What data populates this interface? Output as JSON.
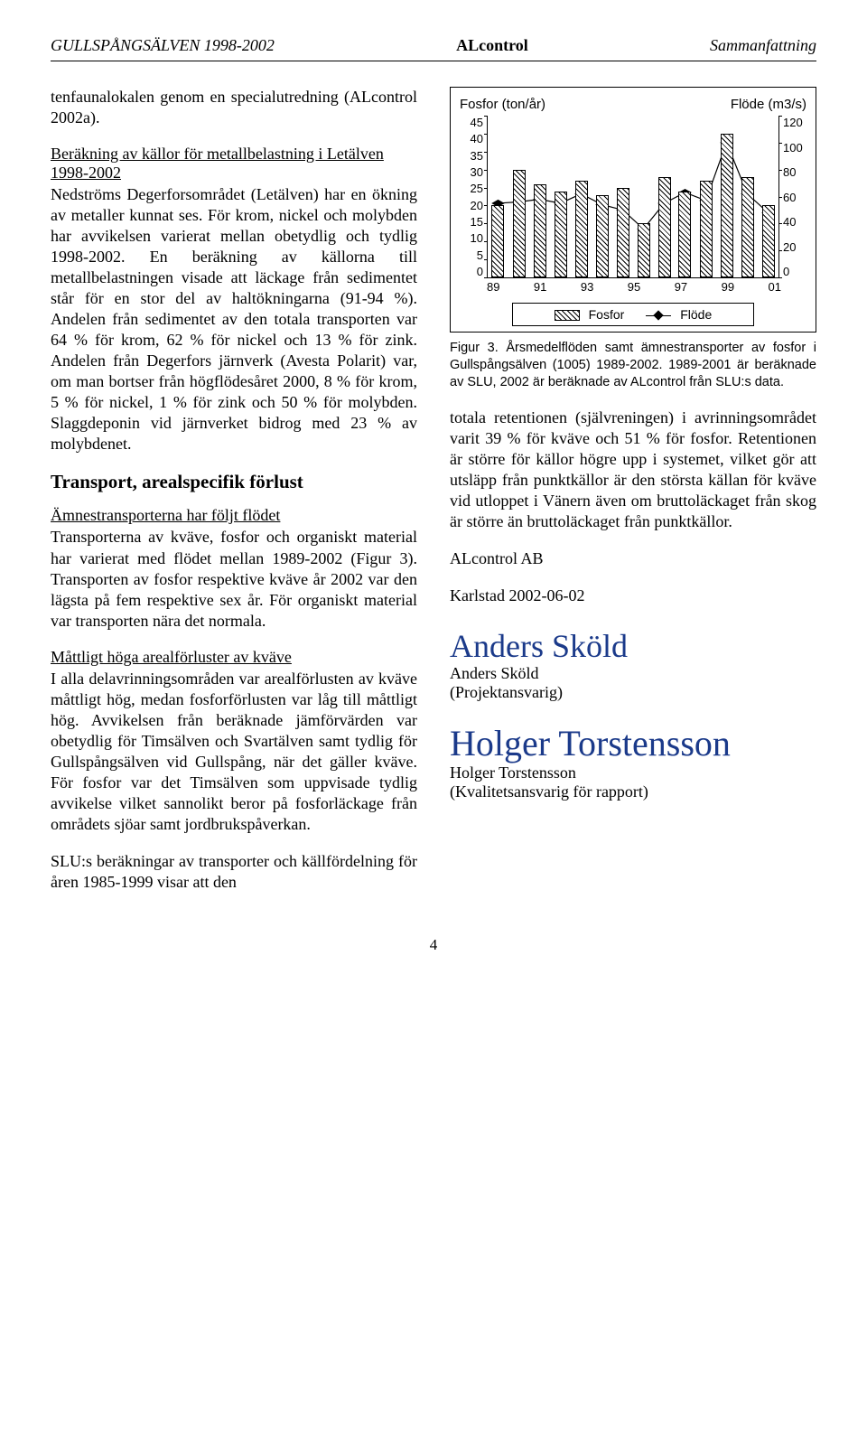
{
  "header": {
    "left": "GULLSPÅNGSÄLVEN 1998-2002",
    "center": "ALcontrol",
    "right": "Sammanfattning"
  },
  "left_col": {
    "p1": "tenfaunalokalen genom en specialutredning (ALcontrol 2002a).",
    "p2_lead": "Beräkning av källor för metallbelastning i Letälven 1998-2002",
    "p2": "Nedströms Degerforsområdet (Letälven) har en ökning av metaller kunnat ses. För krom, nickel och molybden har avvikelsen varierat mellan obetydlig och tydlig 1998-2002. En beräkning av källorna till metallbelastningen visade att läckage från sedimentet står för en stor del av haltökningarna (91-94 %). Andelen från sedimentet av den totala transporten var 64 % för krom, 62 % för nickel och 13 % för zink. Andelen från Degerfors järnverk (Avesta Polarit) var, om man bortser från högflödesåret 2000, 8 % för krom, 5 % för nickel, 1 % för zink och 50 % för molybden. Slaggdeponin vid järnverket bidrog med 23 % av molybdenet.",
    "h1": "Transport, arealspecifik förlust",
    "sub1": "Ämnestransporterna har följt flödet",
    "p3": "Transporterna av kväve, fosfor och organiskt material har varierat med flödet mellan 1989-2002 (Figur 3). Transporten av fosfor respektive kväve år 2002 var den lägsta på fem respektive sex år. För organiskt material var transporten nära det normala.",
    "sub2": "Måttligt höga arealförluster av kväve",
    "p4": "I alla delavrinningsområden var arealförlusten av kväve måttligt hög, medan fosforförlusten var låg till måttligt hög. Avvikelsen från beräknade jämförvärden var obetydlig för Timsälven och Svartälven samt tydlig för Gullspångsälven vid Gullspång, när det gäller kväve. För fosfor var det Timsälven som uppvisade tydlig avvikelse vilket sannolikt beror på fosforläckage från områdets sjöar samt jordbrukspåverkan.",
    "p5": "SLU:s beräkningar av transporter och källfördelning för åren 1985-1999 visar att den"
  },
  "chart": {
    "title_left": "Fosfor (ton/år)",
    "title_right": "Flöde (m3/s)",
    "y_left_ticks": [
      "45",
      "40",
      "35",
      "30",
      "25",
      "20",
      "15",
      "10",
      "5",
      "0"
    ],
    "y_right_ticks": [
      "120",
      "100",
      "80",
      "60",
      "40",
      "20",
      "0"
    ],
    "x_labels": [
      "89",
      "91",
      "93",
      "95",
      "97",
      "99",
      "01"
    ],
    "bars": [
      20,
      30,
      26,
      24,
      27,
      23,
      25,
      15,
      28,
      24,
      27,
      40,
      28,
      20
    ],
    "line": [
      55,
      56,
      58,
      55,
      62,
      54,
      50,
      36,
      55,
      63,
      57,
      100,
      62,
      48
    ],
    "y_left_max": 45,
    "y_right_max": 120,
    "legend_bar": "Fosfor",
    "legend_line": "Flöde"
  },
  "caption": "Figur 3. Årsmedelflöden samt ämnestransporter av fosfor i Gullspångsälven (1005) 1989-2002. 1989-2001 är beräknade av SLU, 2002 är beräknade av ALcontrol från SLU:s data.",
  "right_col": {
    "p1": "totala retentionen (självreningen) i avrinningsområdet varit 39 % för kväve och 51 % för fosfor. Retentionen är större för källor högre upp i systemet, vilket gör att utsläpp från punktkällor är den största källan för kväve vid utloppet i Vänern även om bruttoläckaget från skog är större än bruttoläckaget från punktkällor.",
    "company": "ALcontrol AB",
    "place_date": "Karlstad 2002-06-02",
    "sig1_script": "Anders Sköld",
    "sig1_name": "Anders Sköld",
    "sig1_role": "(Projektansvarig)",
    "sig2_script": "Holger Torstensson",
    "sig2_name": "Holger Torstensson",
    "sig2_role": "(Kvalitetsansvarig för rapport)"
  },
  "pagenum": "4"
}
